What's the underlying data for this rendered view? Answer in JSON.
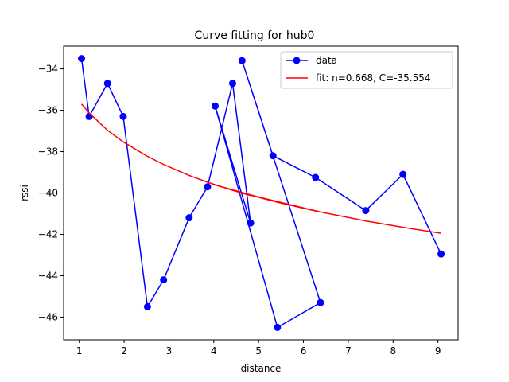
{
  "chart_data": {
    "type": "line",
    "title": "Curve fitting for hub0",
    "xlabel": "distance",
    "ylabel": "rssi",
    "xlim": [
      0.65,
      9.45
    ],
    "ylim": [
      -47.1,
      -32.9
    ],
    "xticks": [
      1,
      2,
      3,
      4,
      5,
      6,
      7,
      8,
      9
    ],
    "yticks": [
      -46,
      -44,
      -42,
      -40,
      -38,
      -36,
      -34
    ],
    "grid": false,
    "legend_position": "top-right",
    "series": [
      {
        "name": "data",
        "style": "line-with-markers",
        "color": "#0000ff",
        "x": [
          1.05,
          1.22,
          1.63,
          1.98,
          2.52,
          2.88,
          3.45,
          3.86,
          4.42,
          4.82,
          4.03,
          5.42,
          6.38,
          4.63,
          5.32,
          6.27,
          7.39,
          8.22,
          9.07
        ],
        "y": [
          -33.5,
          -36.3,
          -34.7,
          -36.3,
          -45.5,
          -44.2,
          -41.2,
          -39.7,
          -34.7,
          -41.45,
          -35.8,
          -46.5,
          -45.3,
          -33.6,
          -38.2,
          -39.25,
          -40.85,
          -39.1,
          -42.95
        ]
      },
      {
        "name": "fit: n=0.668, C=-35.554",
        "style": "line",
        "color": "#ff0000",
        "x": [
          1.05,
          1.22,
          1.63,
          1.98,
          2.52,
          2.88,
          3.45,
          3.86,
          4.42,
          4.82,
          4.03,
          5.42,
          6.38,
          4.63,
          5.32,
          6.27,
          7.39,
          8.22,
          9.07
        ],
        "y": [
          -35.7,
          -36.13,
          -36.97,
          -37.53,
          -38.23,
          -38.62,
          -39.15,
          -39.48,
          -39.87,
          -40.12,
          -39.61,
          -40.45,
          -40.92,
          -40.0,
          -40.39,
          -40.87,
          -41.35,
          -41.66,
          -41.95
        ]
      }
    ]
  }
}
